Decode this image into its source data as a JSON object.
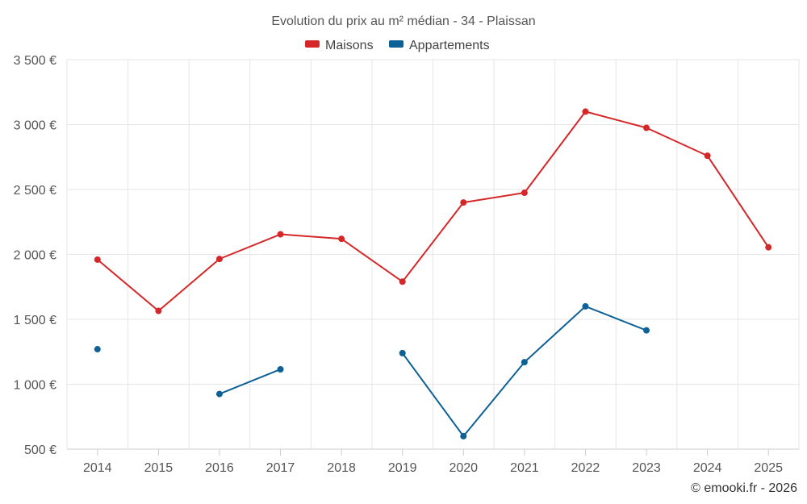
{
  "chart_data": {
    "type": "line",
    "title": "Evolution du prix au m² médian - 34 - Plaissan",
    "categories": [
      "2014",
      "2015",
      "2016",
      "2017",
      "2018",
      "2019",
      "2020",
      "2021",
      "2022",
      "2023",
      "2024",
      "2025"
    ],
    "y_ticks": [
      "500 €",
      "1 000 €",
      "1 500 €",
      "2 000 €",
      "2 500 €",
      "3 000 €",
      "3 500 €"
    ],
    "ylim": [
      500,
      3500
    ],
    "y_tick_values": [
      500,
      1000,
      1500,
      2000,
      2500,
      3000,
      3500
    ],
    "grid": true,
    "legend_position": "top-center",
    "series": [
      {
        "name": "Maisons",
        "color": "#d62728",
        "values": [
          1960,
          1565,
          1965,
          2155,
          2120,
          1790,
          2400,
          2475,
          3100,
          2975,
          2760,
          2055
        ]
      },
      {
        "name": "Appartements",
        "color": "#0e6196",
        "values": [
          1270,
          null,
          925,
          1115,
          null,
          1240,
          600,
          1170,
          1600,
          1415,
          null,
          null
        ]
      }
    ],
    "credit": "© emooki.fr - 2026"
  }
}
